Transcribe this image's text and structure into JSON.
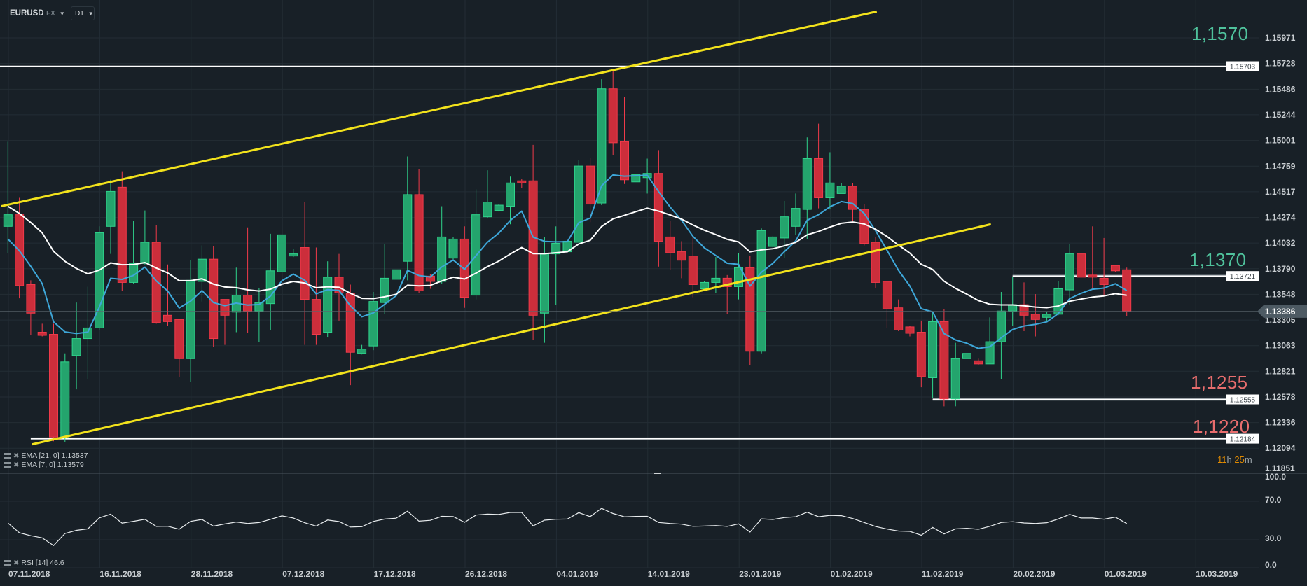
{
  "header": {
    "symbol": "EURUSD",
    "market": "FX",
    "timeframe": "D1"
  },
  "legend": {
    "ema21": "EMA [21, 0] 1.13537",
    "ema7": "EMA [7, 0] 1.13579",
    "rsi": "RSI [14] 46.6"
  },
  "annotations": {
    "a1570": "1,1570",
    "a1370": "1,1370",
    "a1255": "1,1255",
    "a1220": "1,1220"
  },
  "timer": {
    "hours": "11",
    "h": "h",
    "minutes": "25",
    "m": "m"
  },
  "current_price": {
    "value": 1.13386,
    "label": "1.13386"
  },
  "colors": {
    "background": "#182027",
    "up": "#24a46d",
    "down": "#cc2e3b",
    "ema7": "#3ea7d9",
    "ema21": "#ffffff",
    "trendline": "#f2e21c",
    "annotation_up": "#4fc29c",
    "annotation_down": "#e86d6d",
    "timer": "#e08a00"
  },
  "chart_data": {
    "type": "candlestick",
    "price_ticks": [
      "1.15971",
      "1.15728",
      "1.15486",
      "1.15244",
      "1.15001",
      "1.14759",
      "1.14517",
      "1.14274",
      "1.14032",
      "1.13790",
      "1.13548",
      "1.13305",
      "1.13063",
      "1.12821",
      "1.12578",
      "1.12336",
      "1.12094",
      "1.11851"
    ],
    "date_ticks": [
      "07.11.2018",
      "16.11.2018",
      "28.11.2018",
      "07.12.2018",
      "17.12.2018",
      "26.12.2018",
      "04.01.2019",
      "14.01.2019",
      "23.01.2019",
      "01.02.2019",
      "11.02.2019",
      "20.02.2019",
      "01.03.2019",
      "10.03.2019"
    ],
    "ylim": [
      1.11851,
      1.15971
    ],
    "ohlc": [
      [
        1.1419,
        1.1499,
        1.1394,
        1.143
      ],
      [
        1.143,
        1.1446,
        1.1351,
        1.1363
      ],
      [
        1.1364,
        1.1368,
        1.1316,
        1.1337
      ],
      [
        1.1319,
        1.1327,
        1.1315,
        1.1316
      ],
      [
        1.1317,
        1.1327,
        1.1216,
        1.122
      ],
      [
        1.122,
        1.1299,
        1.1215,
        1.1291
      ],
      [
        1.1297,
        1.1347,
        1.1265,
        1.1313
      ],
      [
        1.1313,
        1.1362,
        1.1275,
        1.1323
      ],
      [
        1.1323,
        1.1419,
        1.1321,
        1.1413
      ],
      [
        1.1419,
        1.1463,
        1.1393,
        1.1452
      ],
      [
        1.1456,
        1.1471,
        1.1358,
        1.1366
      ],
      [
        1.1366,
        1.1424,
        1.1365,
        1.1384
      ],
      [
        1.1384,
        1.1434,
        1.1383,
        1.1404
      ],
      [
        1.1404,
        1.142,
        1.1327,
        1.1328
      ],
      [
        1.1335,
        1.1383,
        1.1325,
        1.1329
      ],
      [
        1.1331,
        1.1331,
        1.1277,
        1.1294
      ],
      [
        1.1294,
        1.1387,
        1.1272,
        1.1368
      ],
      [
        1.1367,
        1.1401,
        1.1348,
        1.1388
      ],
      [
        1.1388,
        1.14,
        1.1305,
        1.1313
      ],
      [
        1.135,
        1.135,
        1.1307,
        1.1335
      ],
      [
        1.1338,
        1.138,
        1.1319,
        1.1354
      ],
      [
        1.1354,
        1.1418,
        1.1318,
        1.1339
      ],
      [
        1.1339,
        1.1361,
        1.131,
        1.1347
      ],
      [
        1.1346,
        1.1412,
        1.1321,
        1.1377
      ],
      [
        1.1376,
        1.1423,
        1.136,
        1.1411
      ],
      [
        1.1391,
        1.1398,
        1.139,
        1.1393
      ],
      [
        1.1399,
        1.1442,
        1.1307,
        1.135
      ],
      [
        1.135,
        1.1399,
        1.1307,
        1.1317
      ],
      [
        1.1319,
        1.1386,
        1.1314,
        1.1371
      ],
      [
        1.1371,
        1.1393,
        1.133,
        1.1356
      ],
      [
        1.1356,
        1.1364,
        1.1269,
        1.13
      ],
      [
        1.1299,
        1.1307,
        1.1298,
        1.1303
      ],
      [
        1.1306,
        1.1357,
        1.1302,
        1.1348
      ],
      [
        1.1347,
        1.1402,
        1.1336,
        1.137
      ],
      [
        1.1369,
        1.1439,
        1.1364,
        1.1378
      ],
      [
        1.1386,
        1.1485,
        1.1368,
        1.1449
      ],
      [
        1.1449,
        1.1473,
        1.1356,
        1.1358
      ],
      [
        1.1372,
        1.1374,
        1.136,
        1.1367
      ],
      [
        1.1367,
        1.1438,
        1.1365,
        1.1409
      ],
      [
        1.1389,
        1.1409,
        1.1388,
        1.1407
      ],
      [
        1.1407,
        1.1419,
        1.1342,
        1.1352
      ],
      [
        1.1354,
        1.1454,
        1.135,
        1.143
      ],
      [
        1.1428,
        1.1472,
        1.1427,
        1.1442
      ],
      [
        1.1434,
        1.144,
        1.1433,
        1.1439
      ],
      [
        1.1438,
        1.1466,
        1.1421,
        1.146
      ],
      [
        1.1462,
        1.1464,
        1.1455,
        1.146
      ],
      [
        1.1462,
        1.1496,
        1.1312,
        1.1335
      ],
      [
        1.1337,
        1.1409,
        1.1309,
        1.1393
      ],
      [
        1.1393,
        1.1419,
        1.1345,
        1.1403
      ],
      [
        1.1395,
        1.1405,
        1.1395,
        1.1405
      ],
      [
        1.1404,
        1.1482,
        1.1404,
        1.1476
      ],
      [
        1.1476,
        1.1484,
        1.1423,
        1.144
      ],
      [
        1.1441,
        1.1558,
        1.1439,
        1.1549
      ],
      [
        1.1549,
        1.1568,
        1.1486,
        1.1498
      ],
      [
        1.1499,
        1.1541,
        1.1459,
        1.1463
      ],
      [
        1.1461,
        1.1468,
        1.1461,
        1.1468
      ],
      [
        1.1465,
        1.1483,
        1.145,
        1.1469
      ],
      [
        1.1469,
        1.1491,
        1.1381,
        1.1405
      ],
      [
        1.1409,
        1.1424,
        1.1378,
        1.1394
      ],
      [
        1.1395,
        1.1405,
        1.137,
        1.1387
      ],
      [
        1.1391,
        1.1409,
        1.1352,
        1.1364
      ],
      [
        1.136,
        1.1367,
        1.136,
        1.1366
      ],
      [
        1.1366,
        1.139,
        1.1356,
        1.137
      ],
      [
        1.137,
        1.1373,
        1.1336,
        1.1362
      ],
      [
        1.1362,
        1.1394,
        1.135,
        1.138
      ],
      [
        1.138,
        1.1391,
        1.1288,
        1.1301
      ],
      [
        1.1301,
        1.1417,
        1.1299,
        1.1415
      ],
      [
        1.14,
        1.141,
        1.1399,
        1.1409
      ],
      [
        1.1408,
        1.1443,
        1.1389,
        1.1428
      ],
      [
        1.1419,
        1.145,
        1.1411,
        1.1436
      ],
      [
        1.1435,
        1.1503,
        1.1407,
        1.1483
      ],
      [
        1.1483,
        1.1516,
        1.1436,
        1.1446
      ],
      [
        1.1446,
        1.1489,
        1.1435,
        1.146
      ],
      [
        1.145,
        1.146,
        1.145,
        1.1457
      ],
      [
        1.1457,
        1.146,
        1.1424,
        1.1435
      ],
      [
        1.1435,
        1.144,
        1.1401,
        1.1403
      ],
      [
        1.1404,
        1.1409,
        1.1361,
        1.1366
      ],
      [
        1.1367,
        1.1367,
        1.1323,
        1.1341
      ],
      [
        1.1342,
        1.135,
        1.132,
        1.1321
      ],
      [
        1.1324,
        1.1325,
        1.1315,
        1.1318
      ],
      [
        1.1319,
        1.133,
        1.1267,
        1.1277
      ],
      [
        1.1276,
        1.1339,
        1.1257,
        1.1329
      ],
      [
        1.1329,
        1.1341,
        1.1249,
        1.1256
      ],
      [
        1.1256,
        1.1309,
        1.1249,
        1.1294
      ],
      [
        1.1294,
        1.1305,
        1.1234,
        1.1299
      ],
      [
        1.1292,
        1.1294,
        1.1288,
        1.1289
      ],
      [
        1.1289,
        1.1333,
        1.1289,
        1.131
      ],
      [
        1.131,
        1.1357,
        1.1275,
        1.1339
      ],
      [
        1.1339,
        1.1371,
        1.1325,
        1.1345
      ],
      [
        1.1345,
        1.1366,
        1.132,
        1.1335
      ],
      [
        1.1336,
        1.1355,
        1.1315,
        1.1331
      ],
      [
        1.1333,
        1.1338,
        1.1329,
        1.1336
      ],
      [
        1.1336,
        1.1367,
        1.1335,
        1.136
      ],
      [
        1.1359,
        1.1402,
        1.1345,
        1.1393
      ],
      [
        1.1393,
        1.1403,
        1.1362,
        1.1371
      ],
      [
        1.1373,
        1.1419,
        1.136,
        1.1371
      ],
      [
        1.137,
        1.1408,
        1.1353,
        1.1364
      ],
      [
        1.1382,
        1.1382,
        1.1376,
        1.1377
      ],
      [
        1.1378,
        1.138,
        1.1334,
        1.1339
      ]
    ],
    "ema": [
      {
        "name": "EMA 7",
        "period": 7,
        "start": 1.1407,
        "color": "#3ea7d9",
        "last": 1.13579
      },
      {
        "name": "EMA 21",
        "period": 21,
        "start": 1.1438,
        "color": "#ffffff",
        "last": 1.13537
      }
    ],
    "levels": [
      {
        "price": 1.15703,
        "label": "1.15703",
        "from_index": -1
      },
      {
        "price": 1.13721,
        "label": "1.13721",
        "from_index": 88
      },
      {
        "price": 1.12555,
        "label": "1.12555",
        "from_index": 81
      },
      {
        "price": 1.12184,
        "label": "1.12184",
        "from_index": 2
      }
    ],
    "trendlines": [
      {
        "from": [
          -0.6,
          1.1438
        ],
        "to": [
          76.1,
          1.1622
        ]
      },
      {
        "from": [
          2.1,
          1.1213
        ],
        "to": [
          86.1,
          1.1421
        ]
      }
    ],
    "rsi": {
      "period": 14,
      "last": 46.6,
      "ticks": [
        "100.0",
        "70.0",
        "30.0",
        "0.0"
      ],
      "ylim": [
        0,
        100
      ]
    }
  }
}
